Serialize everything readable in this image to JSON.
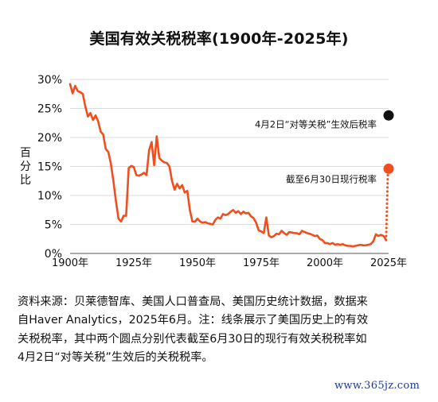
{
  "chart_data": {
    "type": "line",
    "title": "美国有效关税税率(1900年-2025年)",
    "ylabel": "百分比",
    "xlim": [
      1900,
      2025
    ],
    "ylim": [
      0,
      30
    ],
    "x_ticks": [
      1900,
      1925,
      1950,
      1975,
      2000,
      2025
    ],
    "x_tick_labels": [
      "1900年",
      "1925年",
      "1950年",
      "1975年",
      "2000年",
      "2025年"
    ],
    "y_ticks": [
      0,
      5,
      10,
      15,
      20,
      25,
      30
    ],
    "y_tick_labels": [
      "0%",
      "5%",
      "10%",
      "15%",
      "20%",
      "25%",
      "30%"
    ],
    "grid": "horizontal",
    "series": [
      {
        "color": "#f04e1c",
        "x": [
          1900,
          1901,
          1902,
          1903,
          1904,
          1905,
          1906,
          1907,
          1908,
          1909,
          1910,
          1911,
          1912,
          1913,
          1914,
          1915,
          1916,
          1917,
          1918,
          1919,
          1920,
          1921,
          1922,
          1923,
          1924,
          1925,
          1926,
          1927,
          1928,
          1929,
          1930,
          1931,
          1932,
          1933,
          1934,
          1935,
          1936,
          1937,
          1938,
          1939,
          1940,
          1941,
          1942,
          1943,
          1944,
          1945,
          1946,
          1947,
          1948,
          1949,
          1950,
          1951,
          1952,
          1953,
          1954,
          1955,
          1956,
          1957,
          1958,
          1959,
          1960,
          1961,
          1962,
          1963,
          1964,
          1965,
          1966,
          1967,
          1968,
          1969,
          1970,
          1971,
          1972,
          1973,
          1974,
          1975,
          1976,
          1977,
          1978,
          1979,
          1980,
          1981,
          1982,
          1983,
          1984,
          1985,
          1986,
          1987,
          1988,
          1989,
          1990,
          1991,
          1992,
          1993,
          1994,
          1995,
          1996,
          1997,
          1998,
          1999,
          2000,
          2001,
          2002,
          2003,
          2004,
          2005,
          2006,
          2007,
          2008,
          2009,
          2010,
          2011,
          2012,
          2013,
          2014,
          2015,
          2016,
          2017,
          2018,
          2019,
          2020,
          2021,
          2022,
          2023,
          2024
        ],
        "y": [
          29.2,
          27.6,
          28.9,
          28.0,
          27.8,
          27.5,
          25.3,
          23.6,
          24.2,
          23.0,
          23.8,
          22.8,
          21.0,
          20.5,
          18.0,
          17.5,
          15.5,
          12.5,
          9.0,
          6.0,
          5.5,
          6.5,
          6.5,
          14.7,
          15.1,
          14.9,
          13.5,
          13.4,
          13.6,
          13.9,
          13.5,
          17.8,
          19.2,
          15.2,
          20.2,
          16.5,
          16.0,
          15.7,
          15.6,
          15.0,
          12.5,
          11.0,
          12.0,
          11.2,
          11.8,
          10.5,
          10.8,
          7.5,
          5.5,
          5.5,
          6.0,
          5.5,
          5.3,
          5.4,
          5.2,
          5.1,
          5.0,
          5.8,
          6.2,
          6.0,
          6.8,
          6.6,
          6.8,
          7.2,
          7.5,
          7.0,
          7.3,
          6.8,
          7.2,
          6.9,
          7.0,
          6.4,
          6.1,
          5.3,
          4.0,
          3.8,
          3.5,
          6.2,
          3.1,
          2.8,
          3.0,
          3.4,
          3.3,
          3.9,
          3.5,
          3.2,
          3.7,
          3.6,
          3.5,
          3.5,
          3.3,
          3.9,
          3.7,
          3.5,
          3.4,
          3.2,
          3.0,
          3.1,
          2.5,
          2.3,
          1.8,
          1.8,
          1.6,
          1.8,
          1.5,
          1.6,
          1.5,
          1.6,
          1.4,
          1.3,
          1.3,
          1.2,
          1.3,
          1.4,
          1.5,
          1.4,
          1.4,
          1.5,
          1.6,
          2.1,
          3.3,
          3.0,
          3.2,
          3.0,
          2.3
        ]
      }
    ],
    "points": [
      {
        "x": 2025,
        "y": 23.8,
        "color": "#111111",
        "label": "4月2日“对等关税”生效后税率"
      },
      {
        "x": 2025,
        "y": 14.6,
        "color": "#f04e1c",
        "label": "截至6月30日现行税率"
      }
    ],
    "dotted_connector": {
      "x": [
        2024,
        2025
      ],
      "y": [
        2.3,
        14.6
      ]
    }
  },
  "caption": [
    "资料来源：贝莱德智库、美国人口普查局、美国历史统计数据，数据来",
    "自Haver Analytics，2025年6月。注：线条展示了美国历史上的有效",
    "关税税率，其中两个圆点分别代表截至6月30日的现行有效关税税率如",
    "4月2日“对等关税”生效后的关税税率。"
  ],
  "watermark": "www.365jz.com"
}
